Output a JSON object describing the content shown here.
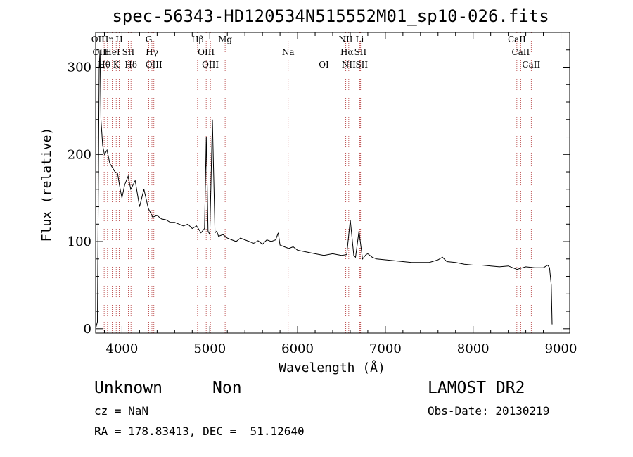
{
  "chart_data": {
    "type": "line",
    "title": "spec-56343-HD120534N515552M01_sp10-026.fits",
    "xlabel": "Wavelength (Å)",
    "ylabel": "Flux (relative)",
    "xlim": [
      3700,
      9100
    ],
    "ylim": [
      -5,
      340
    ],
    "xticks": [
      4000,
      5000,
      6000,
      7000,
      8000,
      9000
    ],
    "yticks": [
      0,
      100,
      200,
      300
    ],
    "grid": false,
    "series": [
      {
        "x": [
          3700,
          3720,
          3740,
          3750,
          3760,
          3780,
          3800,
          3830,
          3860,
          3890,
          3920,
          3950,
          3980,
          4000,
          4030,
          4070,
          4100,
          4150,
          4200,
          4250,
          4300,
          4350,
          4400,
          4450,
          4500,
          4550,
          4600,
          4650,
          4700,
          4750,
          4800,
          4850,
          4900,
          4940,
          4960,
          4980,
          5000,
          5030,
          5060,
          5080,
          5100,
          5150,
          5200,
          5250,
          5300,
          5350,
          5400,
          5450,
          5500,
          5550,
          5600,
          5650,
          5700,
          5750,
          5780,
          5800,
          5850,
          5900,
          5950,
          6000,
          6100,
          6200,
          6300,
          6400,
          6500,
          6560,
          6600,
          6640,
          6660,
          6700,
          6740,
          6780,
          6800,
          6850,
          6900,
          7000,
          7100,
          7200,
          7300,
          7400,
          7500,
          7600,
          7650,
          7700,
          7800,
          7900,
          8000,
          8100,
          8200,
          8300,
          8400,
          8500,
          8600,
          8700,
          8800,
          8850,
          8870,
          8890,
          8900
        ],
        "y": [
          0,
          8,
          300,
          320,
          240,
          210,
          200,
          205,
          190,
          185,
          180,
          178,
          160,
          150,
          165,
          175,
          160,
          170,
          140,
          160,
          138,
          128,
          130,
          126,
          125,
          122,
          122,
          120,
          118,
          120,
          115,
          118,
          110,
          115,
          220,
          112,
          108,
          240,
          110,
          112,
          106,
          108,
          104,
          102,
          100,
          104,
          102,
          100,
          98,
          101,
          97,
          102,
          100,
          102,
          110,
          96,
          94,
          92,
          94,
          90,
          88,
          86,
          84,
          86,
          84,
          85,
          125,
          84,
          82,
          112,
          80,
          85,
          86,
          82,
          80,
          79,
          78,
          77,
          76,
          76,
          76,
          79,
          82,
          77,
          76,
          74,
          73,
          73,
          72,
          71,
          72,
          68,
          71,
          70,
          70,
          73,
          70,
          50,
          5
        ]
      }
    ],
    "lines": [
      {
        "label": "OII",
        "x": 3727
      },
      {
        "label": "OIII",
        "x": 3760
      },
      {
        "label": "Hθ",
        "x": 3797
      },
      {
        "label": "Hη",
        "x": 3835
      },
      {
        "label": "HeI",
        "x": 3889
      },
      {
        "label": "K",
        "x": 3934
      },
      {
        "label": "H",
        "x": 3968
      },
      {
        "label": "SII",
        "x": 4072
      },
      {
        "label": "Hδ",
        "x": 4102
      },
      {
        "label": "G",
        "x": 4305
      },
      {
        "label": "Hγ",
        "x": 4341
      },
      {
        "label": "OIII",
        "x": 4363
      },
      {
        "label": "Hβ",
        "x": 4861
      },
      {
        "label": "OIII",
        "x": 4959
      },
      {
        "label": "OIII",
        "x": 5007
      },
      {
        "label": "Mg",
        "x": 5175
      },
      {
        "label": "Na",
        "x": 5893
      },
      {
        "label": "OI",
        "x": 6300
      },
      {
        "label": "NII",
        "x": 6548
      },
      {
        "label": "Hα",
        "x": 6563
      },
      {
        "label": "NII",
        "x": 6583
      },
      {
        "label": "Li",
        "x": 6708
      },
      {
        "label": "SII",
        "x": 6716
      },
      {
        "label": "SII",
        "x": 6731
      },
      {
        "label": "CaII",
        "x": 8498
      },
      {
        "label": "CaII",
        "x": 8542
      },
      {
        "label": "CaII",
        "x": 8662
      }
    ]
  },
  "footer": {
    "class_text": "Unknown",
    "subclass_text": "Non",
    "cz_text": "cz = NaN",
    "radec_text": "RA = 178.83413, DEC =  51.12640",
    "survey_text": "LAMOST DR2",
    "obsdate_text": "Obs-Date: 20130219"
  }
}
